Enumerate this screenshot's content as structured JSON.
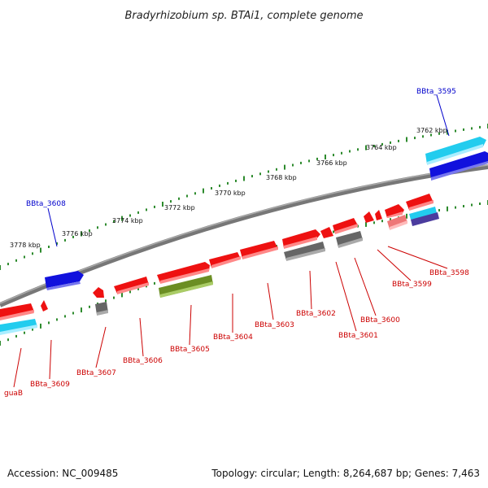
{
  "title": "Bradyrhizobium sp. BTAi1, complete genome",
  "accession": "Accession: NC_009485",
  "topology": "Topology: circular; Length: 8,264,687 bp; Genes: 7,463",
  "colors": {
    "cds_red": "#ee1111",
    "blue_gene": "#1111dd",
    "cyan_gene": "#22ccee",
    "olive_gene": "#6b8e23",
    "gray_gene": "#666666",
    "tick_green": "#2e8b2e",
    "backbone": "#777777",
    "label_red": "#cc0000",
    "label_blue": "#0000cc"
  },
  "axis_labels": [
    "3778 kbp",
    "3776 kbp",
    "3774 kbp",
    "3772 kbp",
    "3770 kbp",
    "3768 kbp",
    "3766 kbp",
    "3764 kbp",
    "3762 kbp"
  ],
  "gene_labels": [
    "BBta_3595",
    "BBta_3608",
    "BBta_3598",
    "BBta_3599",
    "BBta_3600",
    "BBta_3601",
    "BBta_3602",
    "BBta_3603",
    "BBta_3604",
    "BBta_3605",
    "BBta_3606",
    "BBta_3607",
    "BBta_3609",
    "guaB"
  ]
}
